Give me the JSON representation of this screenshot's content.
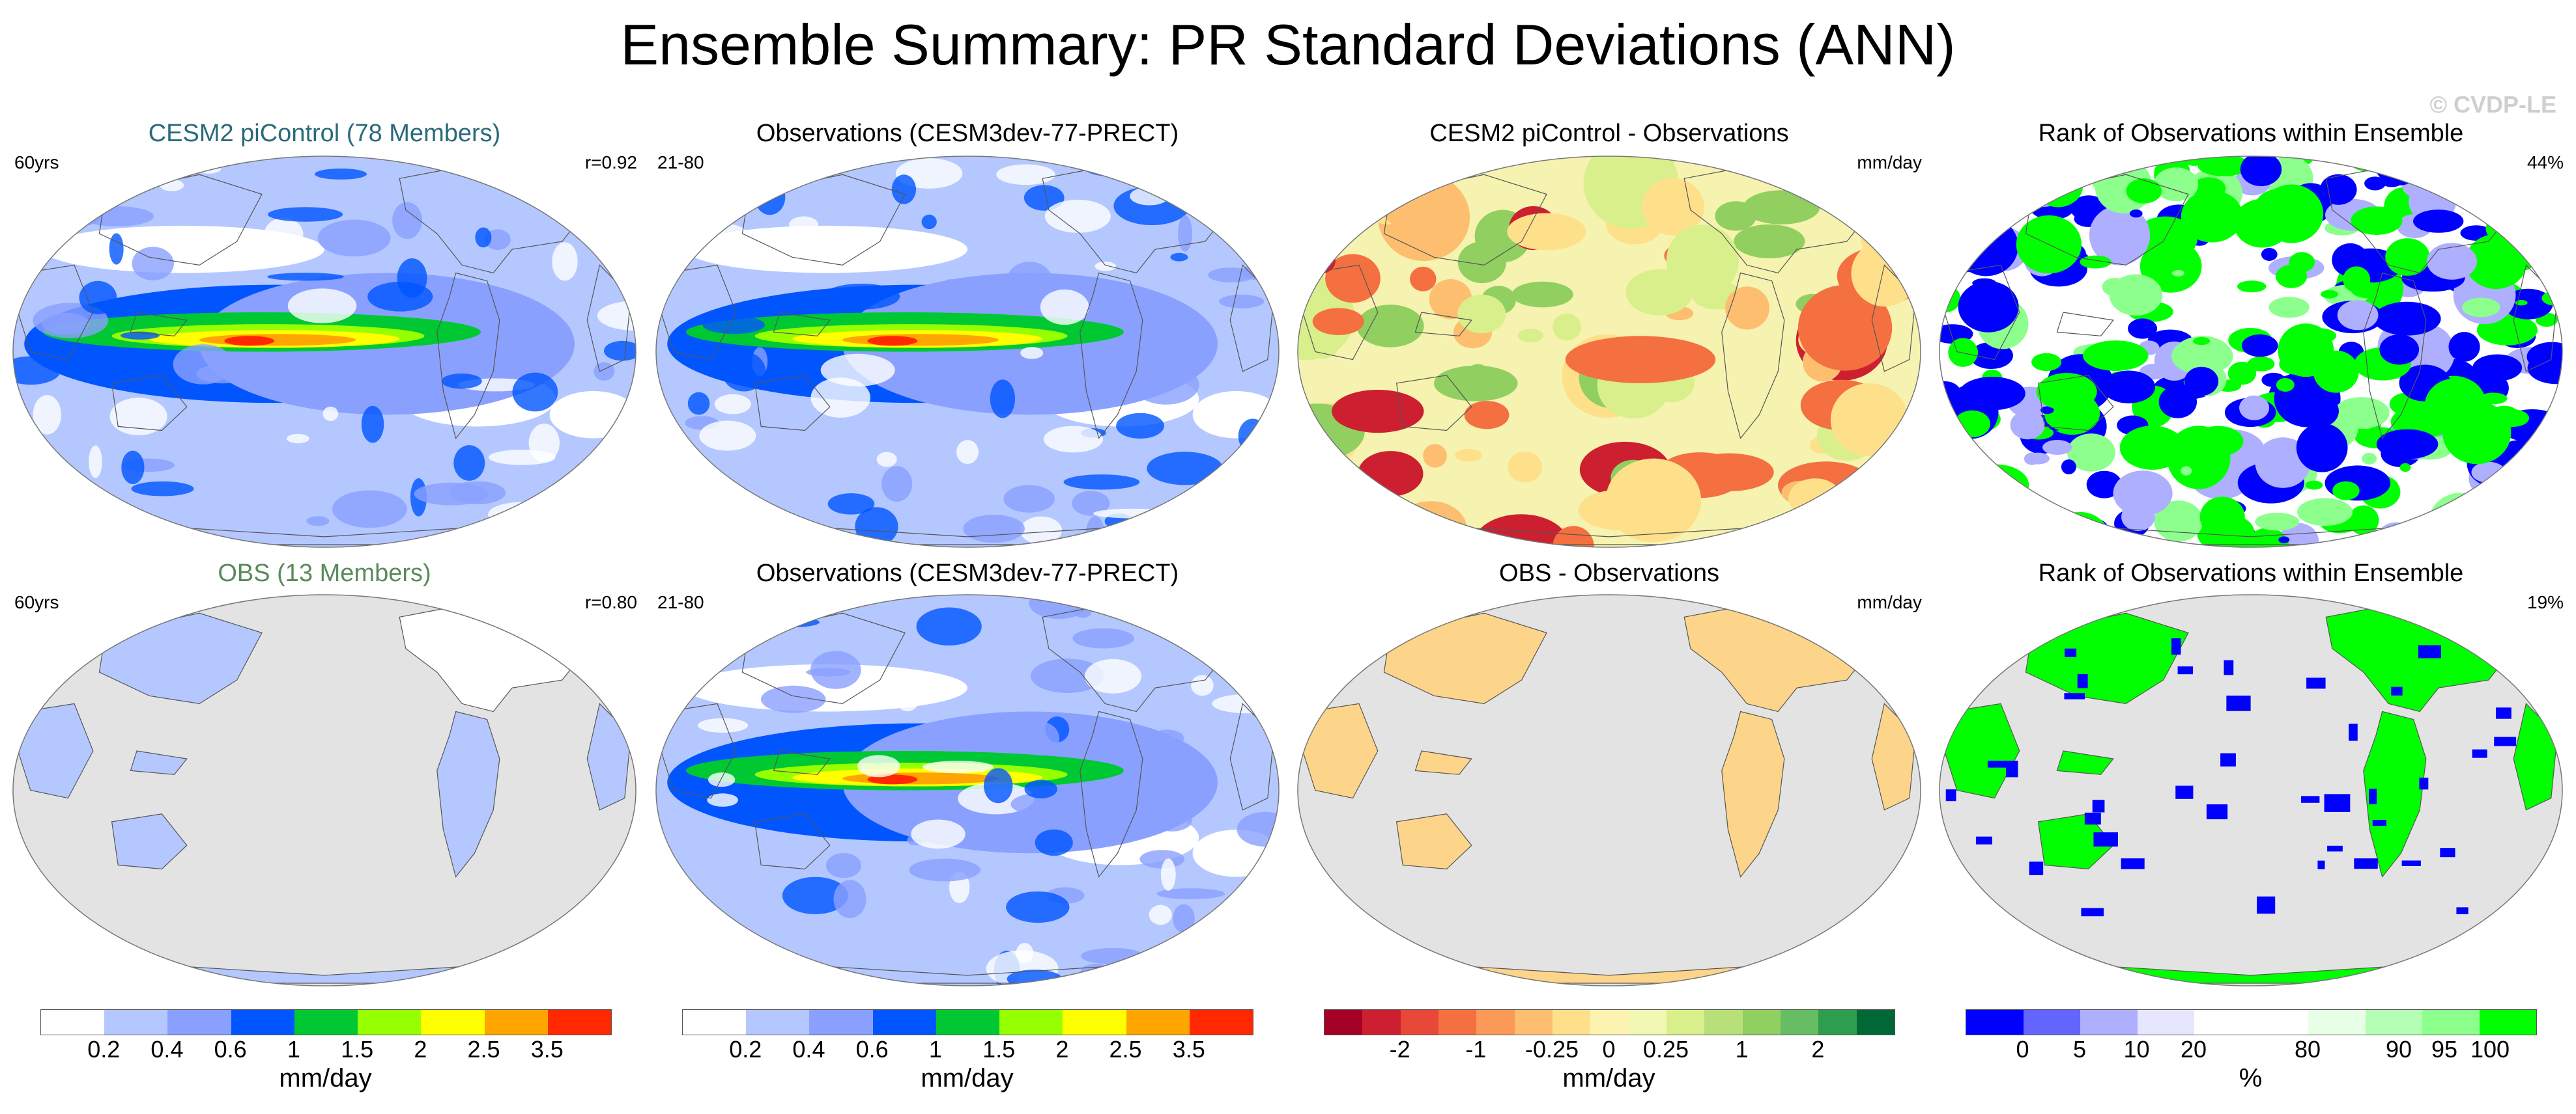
{
  "header": {
    "title": "Ensemble Summary: PR Standard Deviations (ANN)",
    "watermark": "© CVDP-LE"
  },
  "chart_data": [
    {
      "type": "map",
      "panel": "row1-col1",
      "title": "CESM2 piControl (78 Members)",
      "title_color": "#2a6a7a",
      "corner_left": "60yrs",
      "corner_right": "r=0.92",
      "palette": "stddev",
      "region": "global-ocean-land"
    },
    {
      "type": "map",
      "panel": "row1-col2",
      "title": "Observations (CESM3dev-77-PRECT)",
      "title_color": "#000000",
      "corner_left": "21-80",
      "corner_right": "",
      "palette": "stddev",
      "region": "global-ocean-land"
    },
    {
      "type": "map",
      "panel": "row1-col3",
      "title": "CESM2 piControl - Observations",
      "title_color": "#000000",
      "corner_left": "",
      "corner_right": "mm/day",
      "palette": "difference",
      "region": "global-ocean-land"
    },
    {
      "type": "map",
      "panel": "row1-col4",
      "title": "Rank of Observations within Ensemble",
      "title_color": "#000000",
      "corner_left": "",
      "corner_right": "44%",
      "palette": "rank",
      "region": "global-ocean-land"
    },
    {
      "type": "map",
      "panel": "row2-col1",
      "title": "OBS (13 Members)",
      "title_color": "#5a8a5a",
      "corner_left": "60yrs",
      "corner_right": "r=0.80",
      "palette": "stddev",
      "region": "land-only"
    },
    {
      "type": "map",
      "panel": "row2-col2",
      "title": "Observations (CESM3dev-77-PRECT)",
      "title_color": "#000000",
      "corner_left": "21-80",
      "corner_right": "",
      "palette": "stddev",
      "region": "global-ocean-land"
    },
    {
      "type": "map",
      "panel": "row2-col3",
      "title": "OBS - Observations",
      "title_color": "#000000",
      "corner_left": "",
      "corner_right": "mm/day",
      "palette": "difference",
      "region": "land-only"
    },
    {
      "type": "map",
      "panel": "row2-col4",
      "title": "Rank of Observations within Ensemble",
      "title_color": "#000000",
      "corner_left": "",
      "corner_right": "19%",
      "palette": "rank",
      "region": "land-only"
    }
  ],
  "colorbars": [
    {
      "name": "stddev-a",
      "unit": "mm/day",
      "colors": [
        "#ffffff",
        "#b4c8ff",
        "#8aa0ff",
        "#0055ff",
        "#00c832",
        "#96ff00",
        "#ffff00",
        "#ffa500",
        "#ff2800"
      ],
      "ticks": [
        {
          "label": "0.2",
          "at": 1
        },
        {
          "label": "0.4",
          "at": 2
        },
        {
          "label": "0.6",
          "at": 3
        },
        {
          "label": "1",
          "at": 4
        },
        {
          "label": "1.5",
          "at": 5
        },
        {
          "label": "2",
          "at": 6
        },
        {
          "label": "2.5",
          "at": 7
        },
        {
          "label": "3.5",
          "at": 8
        }
      ]
    },
    {
      "name": "stddev-b",
      "unit": "mm/day",
      "colors": [
        "#ffffff",
        "#b4c8ff",
        "#8aa0ff",
        "#0055ff",
        "#00c832",
        "#96ff00",
        "#ffff00",
        "#ffa500",
        "#ff2800"
      ],
      "ticks": [
        {
          "label": "0.2",
          "at": 1
        },
        {
          "label": "0.4",
          "at": 2
        },
        {
          "label": "0.6",
          "at": 3
        },
        {
          "label": "1",
          "at": 4
        },
        {
          "label": "1.5",
          "at": 5
        },
        {
          "label": "2",
          "at": 6
        },
        {
          "label": "2.5",
          "at": 7
        },
        {
          "label": "3.5",
          "at": 8
        }
      ]
    },
    {
      "name": "difference",
      "unit": "mm/day",
      "colors": [
        "#a50026",
        "#cc2030",
        "#e84838",
        "#f47040",
        "#fb9a58",
        "#fdbe70",
        "#fee08b",
        "#fdf3b0",
        "#f1f8b4",
        "#d9ef8b",
        "#b8e07a",
        "#91cf60",
        "#66bd63",
        "#2e9d4e",
        "#006837"
      ],
      "ticks": [
        {
          "label": "-2",
          "at": 2
        },
        {
          "label": "-1",
          "at": 4
        },
        {
          "label": "-0.25",
          "at": 6
        },
        {
          "label": "0",
          "at": 7.5
        },
        {
          "label": "0.25",
          "at": 9
        },
        {
          "label": "1",
          "at": 11
        },
        {
          "label": "2",
          "at": 13
        }
      ]
    },
    {
      "name": "rank",
      "unit": "%",
      "colors": [
        "#0000ff",
        "#6464ff",
        "#afafff",
        "#e6e6ff",
        "#ffffff",
        "#ffffff",
        "#e6ffe6",
        "#b4ffb4",
        "#8cff8c",
        "#00ff00"
      ],
      "ticks": [
        {
          "label": "0",
          "at": 1
        },
        {
          "label": "5",
          "at": 2
        },
        {
          "label": "10",
          "at": 3
        },
        {
          "label": "20",
          "at": 4
        },
        {
          "label": "80",
          "at": 6
        },
        {
          "label": "90",
          "at": 7.6
        },
        {
          "label": "95",
          "at": 8.4
        },
        {
          "label": "100",
          "at": 9.2
        }
      ]
    }
  ]
}
